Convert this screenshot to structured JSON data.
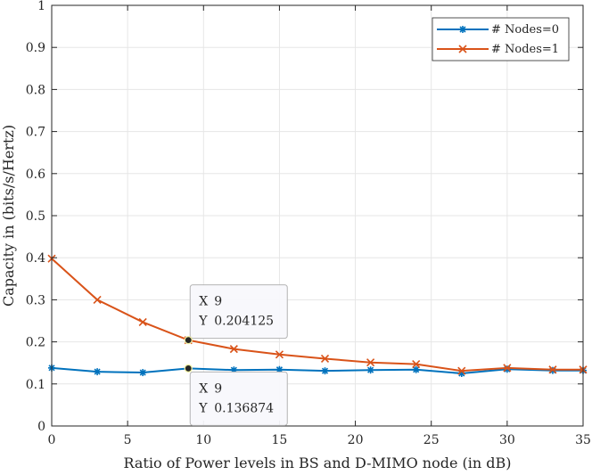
{
  "chart_data": {
    "type": "line",
    "xlabel": "Ratio of Power levels in BS and D-MIMO node (in dB)",
    "ylabel": "Capacity in (bits/s/Hertz)",
    "xlim": [
      0,
      35
    ],
    "ylim": [
      0,
      1
    ],
    "xticks": [
      0,
      5,
      10,
      15,
      20,
      25,
      30,
      35
    ],
    "yticks": [
      0,
      0.1,
      0.2,
      0.3,
      0.4,
      0.5,
      0.6,
      0.7,
      0.8,
      0.9,
      1
    ],
    "x": [
      0,
      3,
      6,
      9,
      12,
      15,
      18,
      21,
      24,
      27,
      30,
      33,
      35
    ],
    "grid": true,
    "legend_location": "top-right",
    "series": [
      {
        "name": "# Nodes=0",
        "marker": "asterisk",
        "color": "#0072BD",
        "values": [
          0.138,
          0.129,
          0.127,
          0.136874,
          0.133,
          0.134,
          0.131,
          0.133,
          0.134,
          0.125,
          0.135,
          0.132,
          0.132
        ]
      },
      {
        "name": "# Nodes=1",
        "marker": "x",
        "color": "#D95319",
        "values": [
          0.398,
          0.3,
          0.247,
          0.204125,
          0.183,
          0.17,
          0.16,
          0.151,
          0.147,
          0.131,
          0.138,
          0.134,
          0.134
        ]
      }
    ],
    "datatips": [
      {
        "series": "# Nodes=1",
        "x_label": "X",
        "x_text": "9",
        "y_label": "Y",
        "y_text": "0.204125",
        "x": 9,
        "y": 0.204125,
        "placement": "above"
      },
      {
        "series": "# Nodes=0",
        "x_label": "X",
        "x_text": "9",
        "y_label": "Y",
        "y_text": "0.136874",
        "x": 9,
        "y": 0.136874,
        "placement": "below"
      }
    ]
  }
}
